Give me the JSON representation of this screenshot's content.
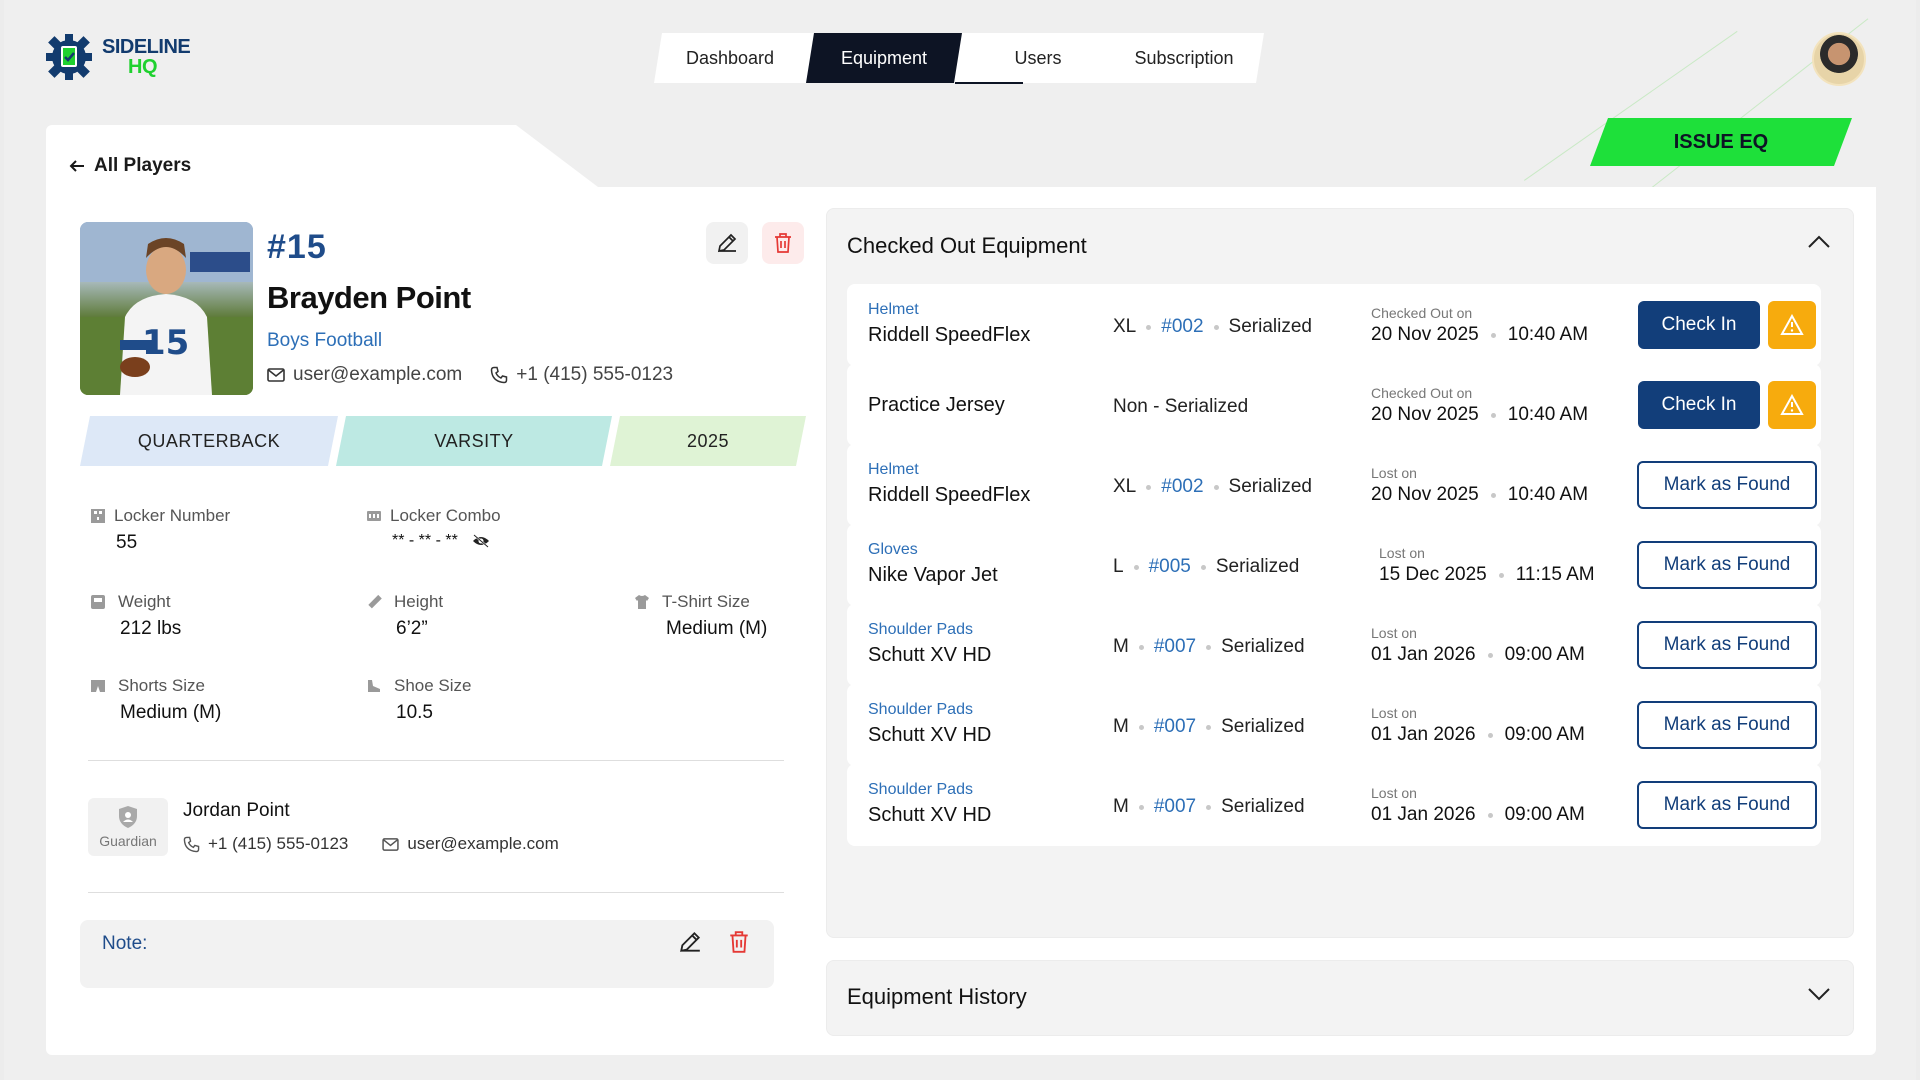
{
  "brand": {
    "line1": "SIDELINE",
    "line2": "HQ"
  },
  "nav": {
    "tabs": [
      {
        "label": "Dashboard"
      },
      {
        "label": "Equipment"
      },
      {
        "label": "Users"
      },
      {
        "label": "Subscription"
      }
    ],
    "active": "Equipment"
  },
  "back_link": "All Players",
  "issue_button": "ISSUE EQ",
  "player": {
    "number": "#15",
    "name": "Brayden Point",
    "team": "Boys Football",
    "email": "user@example.com",
    "phone": "+1 (415) 555-0123",
    "tags": [
      "QUARTERBACK",
      "VARSITY",
      "2025"
    ],
    "attributes": {
      "locker_number": {
        "label": "Locker Number",
        "value": "55"
      },
      "locker_combo": {
        "label": "Locker Combo",
        "value": "** - ** - **"
      },
      "weight": {
        "label": "Weight",
        "value": "212 lbs"
      },
      "height": {
        "label": "Height",
        "value": "6’2”"
      },
      "tshirt": {
        "label": "T-Shirt Size",
        "value": "Medium (M)"
      },
      "shorts": {
        "label": "Shorts Size",
        "value": "Medium (M)"
      },
      "shoe": {
        "label": "Shoe Size",
        "value": "10.5"
      }
    }
  },
  "guardian": {
    "badge": "Guardian",
    "name": "Jordan Point",
    "phone": "+1 (415) 555-0123",
    "email": "user@example.com"
  },
  "note": {
    "label": "Note:"
  },
  "checked_out": {
    "title": "Checked Out Equipment",
    "rows": [
      {
        "category": "Helmet",
        "name": "Riddell SpeedFlex",
        "size": "XL",
        "number": "#002",
        "type": "Serialized",
        "date_label": "Checked Out on",
        "date": "20 Nov 2025",
        "time": "10:40 AM",
        "action": "Check In"
      },
      {
        "category": "",
        "name": "Practice Jersey",
        "size": "",
        "number": "",
        "type": "Non - Serialized",
        "date_label": "Checked Out on",
        "date": "20 Nov 2025",
        "time": "10:40 AM",
        "action": "Check In"
      },
      {
        "category": "Helmet",
        "name": "Riddell SpeedFlex",
        "size": "XL",
        "number": "#002",
        "type": "Serialized",
        "date_label": "Lost on",
        "date": "20 Nov 2025",
        "time": "10:40 AM",
        "action": "Mark as Found"
      },
      {
        "category": "Gloves",
        "name": "Nike Vapor Jet",
        "size": "L",
        "number": "#005",
        "type": "Serialized",
        "date_label": "Lost on",
        "date": "15 Dec 2025",
        "time": "11:15 AM",
        "action": "Mark as Found"
      },
      {
        "category": "Shoulder Pads",
        "name": "Schutt XV HD",
        "size": "M",
        "number": "#007",
        "type": "Serialized",
        "date_label": "Lost on",
        "date": "01 Jan 2026",
        "time": "09:00 AM",
        "action": "Mark as Found"
      },
      {
        "category": "Shoulder Pads",
        "name": "Schutt XV HD",
        "size": "M",
        "number": "#007",
        "type": "Serialized",
        "date_label": "Lost on",
        "date": "01 Jan 2026",
        "time": "09:00 AM",
        "action": "Mark as Found"
      },
      {
        "category": "Shoulder Pads",
        "name": "Schutt XV HD",
        "size": "M",
        "number": "#007",
        "type": "Serialized",
        "date_label": "Lost on",
        "date": "01 Jan 2026",
        "time": "09:00 AM",
        "action": "Mark as Found"
      }
    ]
  },
  "history": {
    "title": "Equipment History"
  },
  "colors": {
    "brand_navy": "#123e7a",
    "brand_green": "#1ee03a",
    "link_blue": "#2d6fb7",
    "warning": "#f7ab0d",
    "danger": "#e53935"
  },
  "icons": [
    "back-arrow-icon",
    "mail-icon",
    "phone-icon",
    "pencil-icon",
    "trash-icon",
    "warning-icon",
    "chevron-up-icon",
    "chevron-down-icon",
    "eye-off-icon",
    "shield-icon"
  ]
}
